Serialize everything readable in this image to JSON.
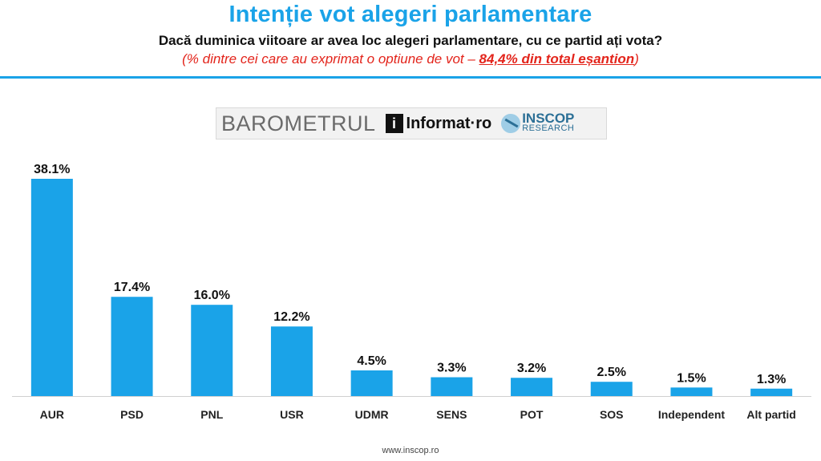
{
  "header": {
    "title": "Intenție vot alegeri parlamentare",
    "question": "Dacă duminica viitoare ar avea loc alegeri parlamentare, cu ce partid ați vota?",
    "note_before": "(% dintre cei care au exprimat o optiune de vot – ",
    "note_highlight": "84,4% din total eșantion",
    "note_after": ")"
  },
  "banner": {
    "barometer": "BAROMETRUL",
    "informat_icon": "i",
    "informat": "Informat·ro",
    "inscop": "INSCOP",
    "research": "RESEARCH"
  },
  "footer": {
    "url": "www.inscop.ro"
  },
  "colors": {
    "bar": "#1aa3e8",
    "title": "#1aa3e8",
    "note": "#e3241b"
  },
  "chart_data": {
    "type": "bar",
    "categories": [
      "AUR",
      "PSD",
      "PNL",
      "USR",
      "UDMR",
      "SENS",
      "POT",
      "SOS",
      "Independent",
      "Alt partid"
    ],
    "values": [
      38.1,
      17.4,
      16.0,
      12.2,
      4.5,
      3.3,
      3.2,
      2.5,
      1.5,
      1.3
    ],
    "value_labels": [
      "38.1%",
      "17.4%",
      "16.0%",
      "12.2%",
      "4.5%",
      "3.3%",
      "3.2%",
      "2.5%",
      "1.5%",
      "1.3%"
    ],
    "title": "",
    "xlabel": "",
    "ylabel": "",
    "ylim": [
      0,
      38.1
    ],
    "grid": false,
    "legend": "none"
  }
}
